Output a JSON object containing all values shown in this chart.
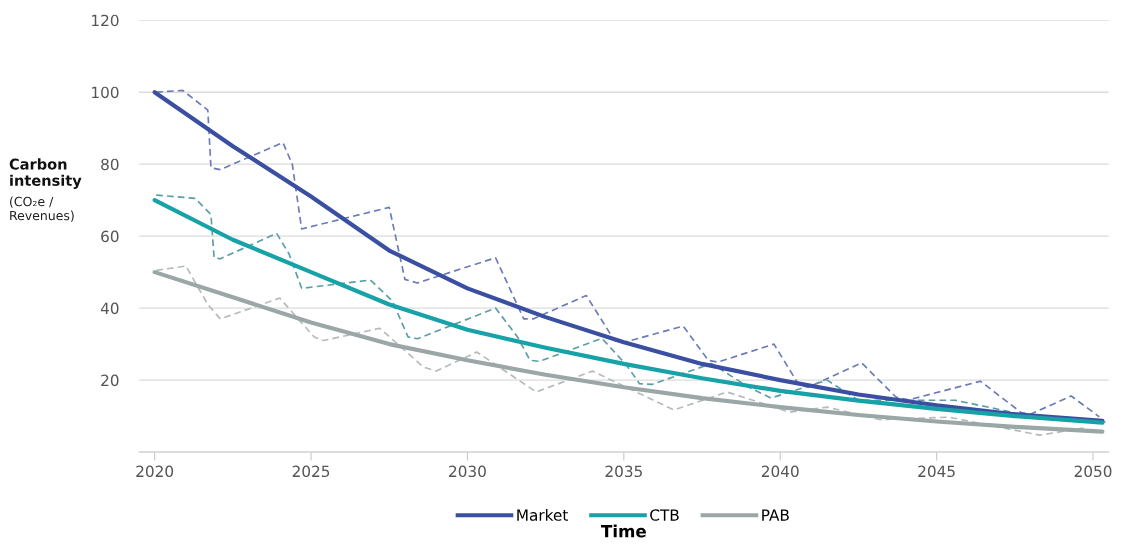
{
  "chart_data": {
    "type": "line",
    "xlabel": "Time",
    "ylabel": "Carbon intensity",
    "annotations": [
      "(CO₂e / Revenues)"
    ],
    "xlim": [
      2019.5,
      2050.5
    ],
    "xticks": [
      2020,
      2025,
      2030,
      2035,
      2040,
      2045,
      2050
    ],
    "ylim": [
      0,
      120
    ],
    "yticks": [
      {
        "value": 0,
        "label": null
      },
      20,
      40,
      60,
      80,
      100,
      120
    ],
    "grid": "y",
    "legend": "bottom",
    "series": [
      {
        "color": "#6b7bb8",
        "line_style": "dashed",
        "x": [
          2020.05,
          2020.9,
          2021.7,
          2021.8,
          2022.1,
          2024.1,
          2024.4,
          2024.7,
          2027.5,
          2028.0,
          2028.4,
          2030.9,
          2031.8,
          2032.1,
          2033.8,
          2034.7,
          2035.0,
          2036.9,
          2037.7,
          2038.0,
          2039.8,
          2040.6,
          2040.9,
          2042.6,
          2043.7,
          2044.1,
          2046.4,
          2047.7,
          2048.0,
          2049.3,
          2050.2
        ],
        "values": [
          100,
          100.5,
          95,
          79,
          78.5,
          86,
          80,
          62,
          68,
          48,
          47,
          54,
          37,
          37,
          43.5,
          31,
          30.5,
          35,
          25.5,
          25,
          30,
          18.6,
          18,
          24.8,
          15.3,
          14.5,
          19.7,
          11,
          10.5,
          15.6,
          9.8
        ]
      },
      {
        "color": "#5a9fa6",
        "line_style": "dashed",
        "x": [
          2020.05,
          2021.3,
          2021.8,
          2021.9,
          2022.1,
          2023.9,
          2024.3,
          2024.7,
          2026.9,
          2027.6,
          2028.1,
          2028.4,
          2030.9,
          2031.6,
          2032.0,
          2032.3,
          2034.3,
          2035.1,
          2035.5,
          2035.9,
          2037.8,
          2039.0,
          2039.7,
          2041.5,
          2042.5,
          2045.6,
          2048.0,
          2050.4
        ],
        "values": [
          71.4,
          70.5,
          66,
          54,
          53.7,
          60.8,
          55,
          45.5,
          47.8,
          42,
          32,
          31.5,
          40,
          32,
          25.5,
          25.2,
          31.6,
          24,
          19,
          18.8,
          24.6,
          18,
          15,
          20,
          14.4,
          14.4,
          10,
          8.3
        ]
      },
      {
        "color": "#b5bbbb",
        "line_style": "dashed",
        "x": [
          2020.05,
          2021.0,
          2021.7,
          2022.1,
          2024.0,
          2025.1,
          2025.4,
          2027.2,
          2028.6,
          2029.0,
          2030.3,
          2032.2,
          2034.0,
          2036.6,
          2038.3,
          2040.3,
          2041.5,
          2043.2,
          2045.4,
          2048.3,
          2049.7
        ],
        "values": [
          50.5,
          51.7,
          41,
          37,
          42.8,
          32,
          31,
          34.4,
          23.6,
          22.5,
          27.8,
          16.7,
          22.5,
          11.7,
          16.7,
          11.1,
          12.5,
          9,
          9.7,
          4.7,
          6.7
        ]
      },
      {
        "name": "Market",
        "color": "#3a4ea2",
        "line_style": "solid",
        "x": [
          2020,
          2022.5,
          2025,
          2027.5,
          2030,
          2032.5,
          2035,
          2037.5,
          2040,
          2042.5,
          2045,
          2047.5,
          2050.3
        ],
        "values": [
          100,
          85,
          71,
          56,
          45.5,
          37.5,
          30.5,
          24.5,
          20,
          16,
          13,
          10.5,
          8.7
        ]
      },
      {
        "name": "CTB",
        "color": "#16a2a6",
        "line_style": "solid",
        "x": [
          2020,
          2022.5,
          2025,
          2027.5,
          2030,
          2032.5,
          2035,
          2037.5,
          2040,
          2042.5,
          2045,
          2047.5,
          2050.3
        ],
        "values": [
          70,
          59,
          50,
          41,
          34,
          29,
          24.5,
          20.5,
          17,
          14.3,
          12,
          10,
          8.2
        ]
      },
      {
        "name": "PAB",
        "color": "#9ba6a6",
        "line_style": "solid",
        "x": [
          2020,
          2022.5,
          2025,
          2027.5,
          2030,
          2032.5,
          2035,
          2037.5,
          2040,
          2042.5,
          2045,
          2047.5,
          2050.3
        ],
        "values": [
          50,
          43,
          36,
          30,
          25.5,
          21.5,
          18,
          15,
          12.5,
          10.3,
          8.5,
          7,
          5.7
        ]
      }
    ]
  }
}
